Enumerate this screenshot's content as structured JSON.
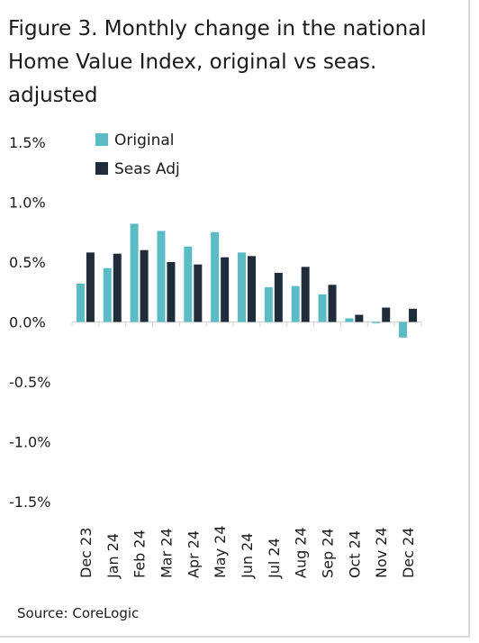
{
  "title": "Figure 3. Monthly change in the national Home Value Index, original vs seas. adjusted",
  "source": "Source: CoreLogic",
  "colors": {
    "original": "#5bbcc6",
    "seas_adj": "#1f2d3a",
    "axis": "#d0d0d0"
  },
  "chart_data": {
    "type": "bar",
    "categories": [
      "Dec 23",
      "Jan 24",
      "Feb 24",
      "Mar 24",
      "Apr 24",
      "May 24",
      "Jun 24",
      "Jul 24",
      "Aug 24",
      "Sep 24",
      "Oct 24",
      "Nov 24",
      "Dec 24"
    ],
    "series": [
      {
        "name": "Original",
        "values": [
          0.32,
          0.45,
          0.82,
          0.76,
          0.63,
          0.75,
          0.58,
          0.29,
          0.3,
          0.23,
          0.03,
          -0.01,
          -0.13
        ]
      },
      {
        "name": "Seas Adj",
        "values": [
          0.58,
          0.57,
          0.6,
          0.5,
          0.48,
          0.54,
          0.55,
          0.41,
          0.46,
          0.31,
          0.06,
          0.12,
          0.11
        ]
      }
    ],
    "ylim": [
      -1.5,
      1.5
    ],
    "yticks": [
      -1.5,
      -1.0,
      -0.5,
      0.0,
      0.5,
      1.0,
      1.5
    ],
    "ytick_labels": [
      "-1.5%",
      "-1.0%",
      "-0.5%",
      "0.0%",
      "0.5%",
      "1.0%",
      "1.5%"
    ],
    "legend": "top-left",
    "grid": false
  }
}
